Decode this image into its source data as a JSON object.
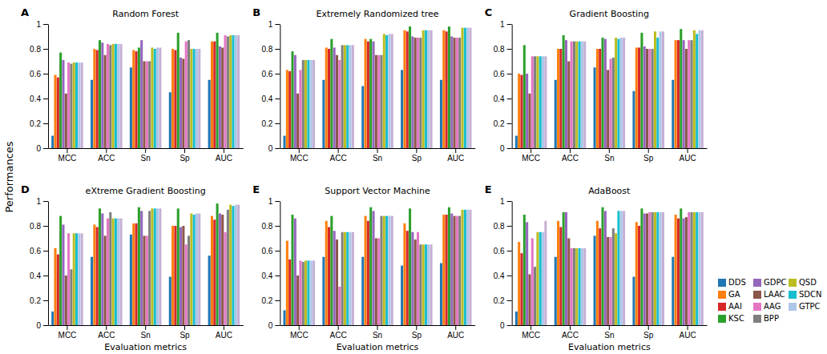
{
  "y_label": "Performances",
  "chart_data": [
    {
      "type": "bar",
      "title": "Random Forest",
      "annotations": [
        "A"
      ],
      "categories": [
        "MCC",
        "ACC",
        "Sn",
        "Sp",
        "AUC"
      ],
      "ylim": [
        0,
        1
      ],
      "yticks": [
        0,
        0.2,
        0.4,
        0.6,
        0.8,
        1
      ],
      "grid": false,
      "series": [
        {
          "color": "#1f77b4",
          "values": [
            0.1,
            0.55,
            0.65,
            0.45,
            0.55
          ]
        },
        {
          "color": "#ff7f0e",
          "values": [
            0.59,
            0.8,
            0.79,
            0.8,
            0.86
          ]
        },
        {
          "color": "#d62728",
          "values": [
            0.57,
            0.79,
            0.78,
            0.79,
            0.86
          ]
        },
        {
          "color": "#2ca02c",
          "values": [
            0.77,
            0.87,
            0.81,
            0.93,
            0.93
          ]
        },
        {
          "color": "#9467bd",
          "values": [
            0.71,
            0.85,
            0.87,
            0.73,
            0.82
          ]
        },
        {
          "color": "#8c564b",
          "values": [
            0.44,
            0.75,
            0.7,
            0.72,
            0.81
          ]
        },
        {
          "color": "#e377c2",
          "values": [
            0.69,
            0.84,
            0.7,
            0.86,
            0.91
          ]
        },
        {
          "color": "#7f7f7f",
          "values": [
            0.68,
            0.83,
            0.7,
            0.87,
            0.9
          ]
        },
        {
          "color": "#bcbd22",
          "values": [
            0.69,
            0.84,
            0.81,
            0.8,
            0.91
          ]
        },
        {
          "color": "#17becf",
          "values": [
            0.69,
            0.84,
            0.8,
            0.8,
            0.91
          ]
        },
        {
          "color": "#aec7e8",
          "values": [
            0.69,
            0.84,
            0.81,
            0.8,
            0.91
          ]
        },
        {
          "color": "#c5b0d5",
          "values": [
            0.69,
            0.84,
            0.81,
            0.8,
            0.91
          ]
        }
      ]
    },
    {
      "type": "bar",
      "title": "Extremely Randomized tree",
      "annotations": [
        "B"
      ],
      "categories": [
        "MCC",
        "ACC",
        "Sn",
        "Sp",
        "AUC"
      ],
      "ylim": [
        0,
        1
      ],
      "yticks": [
        0,
        0.2,
        0.4,
        0.6,
        0.8,
        1
      ],
      "grid": false,
      "series": [
        {
          "color": "#1f77b4",
          "values": [
            0.1,
            0.55,
            0.5,
            0.63,
            0.55
          ]
        },
        {
          "color": "#ff7f0e",
          "values": [
            0.63,
            0.81,
            0.88,
            0.95,
            0.95
          ]
        },
        {
          "color": "#d62728",
          "values": [
            0.62,
            0.8,
            0.86,
            0.94,
            0.94
          ]
        },
        {
          "color": "#2ca02c",
          "values": [
            0.78,
            0.88,
            0.88,
            0.98,
            0.98
          ]
        },
        {
          "color": "#9467bd",
          "values": [
            0.75,
            0.81,
            0.86,
            0.9,
            0.9
          ]
        },
        {
          "color": "#8c564b",
          "values": [
            0.44,
            0.75,
            0.75,
            0.89,
            0.89
          ]
        },
        {
          "color": "#e377c2",
          "values": [
            0.63,
            0.71,
            0.75,
            0.89,
            0.89
          ]
        },
        {
          "color": "#7f7f7f",
          "values": [
            0.71,
            0.83,
            0.75,
            0.89,
            0.89
          ]
        },
        {
          "color": "#bcbd22",
          "values": [
            0.71,
            0.83,
            0.92,
            0.95,
            0.97
          ]
        },
        {
          "color": "#17becf",
          "values": [
            0.71,
            0.83,
            0.91,
            0.95,
            0.97
          ]
        },
        {
          "color": "#aec7e8",
          "values": [
            0.71,
            0.83,
            0.92,
            0.95,
            0.97
          ]
        },
        {
          "color": "#c5b0d5",
          "values": [
            0.71,
            0.83,
            0.92,
            0.95,
            0.97
          ]
        }
      ]
    },
    {
      "type": "bar",
      "title": "Gradient Boosting",
      "annotations": [
        "C"
      ],
      "categories": [
        "MCC",
        "ACC",
        "Sn",
        "Sp",
        "AUC"
      ],
      "ylim": [
        0,
        1
      ],
      "yticks": [
        0,
        0.2,
        0.4,
        0.6,
        0.8,
        1
      ],
      "grid": false,
      "series": [
        {
          "color": "#1f77b4",
          "values": [
            0.1,
            0.55,
            0.65,
            0.46,
            0.55
          ]
        },
        {
          "color": "#ff7f0e",
          "values": [
            0.6,
            0.8,
            0.8,
            0.81,
            0.87
          ]
        },
        {
          "color": "#d62728",
          "values": [
            0.59,
            0.8,
            0.8,
            0.81,
            0.87
          ]
        },
        {
          "color": "#2ca02c",
          "values": [
            0.83,
            0.91,
            0.89,
            0.93,
            0.96
          ]
        },
        {
          "color": "#9467bd",
          "values": [
            0.6,
            0.87,
            0.88,
            0.82,
            0.87
          ]
        },
        {
          "color": "#8c564b",
          "values": [
            0.44,
            0.7,
            0.63,
            0.8,
            0.8
          ]
        },
        {
          "color": "#e377c2",
          "values": [
            0.74,
            0.86,
            0.72,
            0.8,
            0.87
          ]
        },
        {
          "color": "#7f7f7f",
          "values": [
            0.74,
            0.86,
            0.73,
            0.8,
            0.87
          ]
        },
        {
          "color": "#bcbd22",
          "values": [
            0.74,
            0.86,
            0.89,
            0.94,
            0.95
          ]
        },
        {
          "color": "#17becf",
          "values": [
            0.74,
            0.86,
            0.88,
            0.89,
            0.92
          ]
        },
        {
          "color": "#aec7e8",
          "values": [
            0.74,
            0.86,
            0.89,
            0.94,
            0.95
          ]
        },
        {
          "color": "#c5b0d5",
          "values": [
            0.74,
            0.86,
            0.89,
            0.94,
            0.95
          ]
        }
      ]
    },
    {
      "type": "bar",
      "title": "eXtreme Gradient Boosting",
      "annotations": [
        "D"
      ],
      "x_label": "Evaluation metrics",
      "categories": [
        "MCC",
        "ACC",
        "Sn",
        "Sp",
        "AUC"
      ],
      "ylim": [
        0,
        1
      ],
      "yticks": [
        0,
        0.2,
        0.4,
        0.6,
        0.8,
        1
      ],
      "grid": false,
      "series": [
        {
          "color": "#1f77b4",
          "values": [
            0.11,
            0.55,
            0.73,
            0.39,
            0.56
          ]
        },
        {
          "color": "#ff7f0e",
          "values": [
            0.62,
            0.81,
            0.82,
            0.8,
            0.88
          ]
        },
        {
          "color": "#d62728",
          "values": [
            0.57,
            0.79,
            0.82,
            0.8,
            0.85
          ]
        },
        {
          "color": "#2ca02c",
          "values": [
            0.88,
            0.94,
            0.95,
            0.94,
            0.98
          ]
        },
        {
          "color": "#9467bd",
          "values": [
            0.81,
            0.9,
            0.92,
            0.79,
            0.9
          ]
        },
        {
          "color": "#8c564b",
          "values": [
            0.4,
            0.72,
            0.72,
            0.8,
            0.89
          ]
        },
        {
          "color": "#e377c2",
          "values": [
            0.74,
            0.86,
            0.72,
            0.65,
            0.75
          ]
        },
        {
          "color": "#7f7f7f",
          "values": [
            0.45,
            0.91,
            0.92,
            0.72,
            0.93
          ]
        },
        {
          "color": "#bcbd22",
          "values": [
            0.74,
            0.86,
            0.94,
            0.9,
            0.97
          ]
        },
        {
          "color": "#17becf",
          "values": [
            0.74,
            0.86,
            0.94,
            0.89,
            0.96
          ]
        },
        {
          "color": "#aec7e8",
          "values": [
            0.74,
            0.86,
            0.94,
            0.9,
            0.97
          ]
        },
        {
          "color": "#c5b0d5",
          "values": [
            0.74,
            0.86,
            0.94,
            0.9,
            0.97
          ]
        }
      ]
    },
    {
      "type": "bar",
      "title": "Support Vector Machine",
      "annotations": [
        "E"
      ],
      "x_label": "Evaluation metrics",
      "categories": [
        "MCC",
        "ACC",
        "Sn",
        "Sp",
        "AUC"
      ],
      "ylim": [
        0,
        1
      ],
      "yticks": [
        0,
        0.2,
        0.4,
        0.6,
        0.8,
        1
      ],
      "grid": false,
      "series": [
        {
          "color": "#1f77b4",
          "values": [
            0.12,
            0.55,
            0.55,
            0.48,
            0.5
          ]
        },
        {
          "color": "#ff7f0e",
          "values": [
            0.68,
            0.84,
            0.88,
            0.82,
            0.89
          ]
        },
        {
          "color": "#d62728",
          "values": [
            0.53,
            0.79,
            0.84,
            0.76,
            0.89
          ]
        },
        {
          "color": "#2ca02c",
          "values": [
            0.89,
            0.88,
            0.95,
            0.94,
            0.95
          ]
        },
        {
          "color": "#9467bd",
          "values": [
            0.86,
            0.76,
            0.92,
            0.75,
            0.9
          ]
        },
        {
          "color": "#8c564b",
          "values": [
            0.4,
            0.69,
            0.7,
            0.69,
            0.88
          ]
        },
        {
          "color": "#e377c2",
          "values": [
            0.52,
            0.31,
            0.7,
            0.75,
            0.88
          ]
        },
        {
          "color": "#7f7f7f",
          "values": [
            0.51,
            0.75,
            0.88,
            0.65,
            0.88
          ]
        },
        {
          "color": "#bcbd22",
          "values": [
            0.52,
            0.75,
            0.88,
            0.65,
            0.93
          ]
        },
        {
          "color": "#17becf",
          "values": [
            0.52,
            0.75,
            0.88,
            0.65,
            0.93
          ]
        },
        {
          "color": "#aec7e8",
          "values": [
            0.52,
            0.75,
            0.88,
            0.65,
            0.93
          ]
        },
        {
          "color": "#c5b0d5",
          "values": [
            0.52,
            0.75,
            0.88,
            0.65,
            0.93
          ]
        }
      ]
    },
    {
      "type": "bar",
      "title": "AdaBoost",
      "annotations": [
        "E"
      ],
      "x_label": "Evaluation metrics",
      "categories": [
        "MCC",
        "ACC",
        "Sn",
        "Sp",
        "AUC"
      ],
      "ylim": [
        0,
        1
      ],
      "yticks": [
        0,
        0.2,
        0.4,
        0.6,
        0.8,
        1
      ],
      "grid": false,
      "legend": "lower right",
      "series": [
        {
          "name": "DDS",
          "color": "#1f77b4",
          "values": [
            0.11,
            0.55,
            0.72,
            0.39,
            0.55
          ]
        },
        {
          "name": "GA",
          "color": "#ff7f0e",
          "values": [
            0.67,
            0.84,
            0.84,
            0.83,
            0.89
          ]
        },
        {
          "name": "AAI",
          "color": "#d62728",
          "values": [
            0.58,
            0.79,
            0.78,
            0.8,
            0.86
          ]
        },
        {
          "name": "KSC",
          "color": "#2ca02c",
          "values": [
            0.89,
            0.91,
            0.95,
            0.94,
            0.94
          ]
        },
        {
          "name": "GDPC",
          "color": "#9467bd",
          "values": [
            0.83,
            0.91,
            0.92,
            0.9,
            0.86
          ]
        },
        {
          "name": "LAAC",
          "color": "#8c564b",
          "values": [
            0.41,
            0.7,
            0.71,
            0.9,
            0.87
          ]
        },
        {
          "name": "AAG",
          "color": "#e377c2",
          "values": [
            0.7,
            0.62,
            0.71,
            0.91,
            0.91
          ]
        },
        {
          "name": "BPP",
          "color": "#7f7f7f",
          "values": [
            0.47,
            0.62,
            0.78,
            0.91,
            0.91
          ]
        },
        {
          "name": "QSD",
          "color": "#bcbd22",
          "values": [
            0.75,
            0.62,
            0.74,
            0.91,
            0.91
          ]
        },
        {
          "name": "SDCN",
          "color": "#17becf",
          "values": [
            0.75,
            0.62,
            0.92,
            0.91,
            0.91
          ]
        },
        {
          "name": "GTPC",
          "color": "#aec7e8",
          "values": [
            0.75,
            0.62,
            0.92,
            0.91,
            0.91
          ]
        },
        {
          "color": "#c5b0d5",
          "values": [
            0.84,
            0.62,
            0.92,
            0.91,
            0.91
          ]
        }
      ]
    }
  ]
}
